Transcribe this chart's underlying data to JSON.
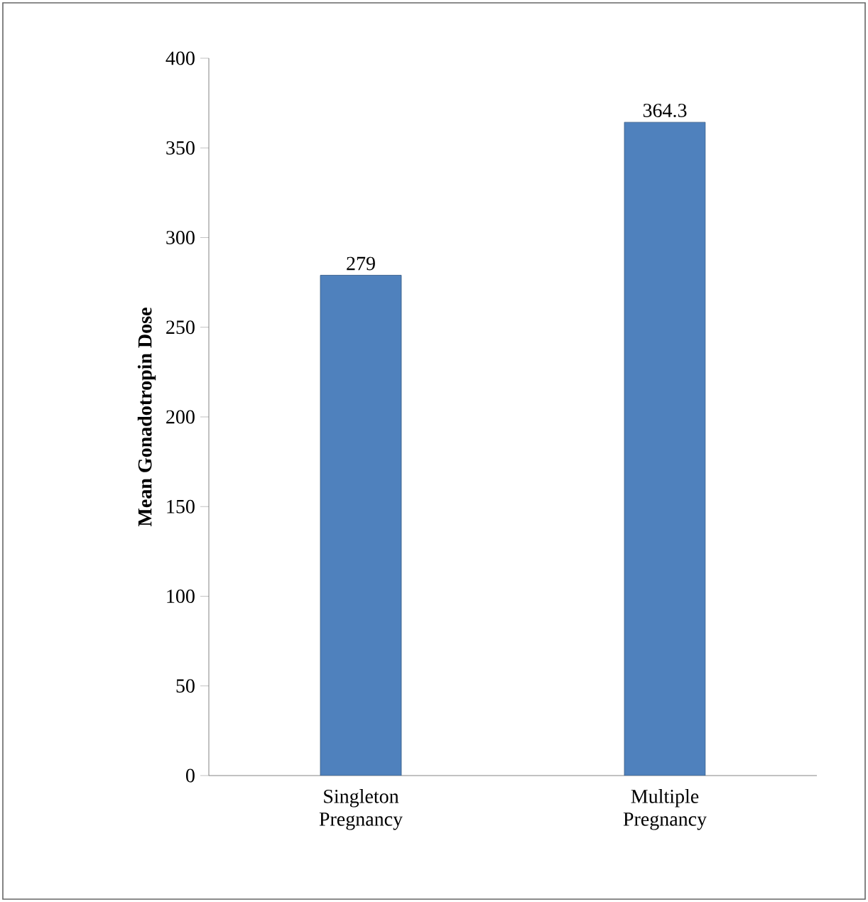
{
  "chart_data": {
    "type": "bar",
    "ylabel": "Mean Gonadotropin Dose",
    "categories": [
      "Singleton Pregnancy",
      "Multiple Pregnancy"
    ],
    "values": [
      279,
      364.3
    ],
    "color": "#4f81bd",
    "ylim": [
      0,
      400
    ],
    "yticks": [
      0,
      50,
      100,
      150,
      200,
      250,
      300,
      350,
      400
    ],
    "data_labels": true,
    "grid": false
  }
}
